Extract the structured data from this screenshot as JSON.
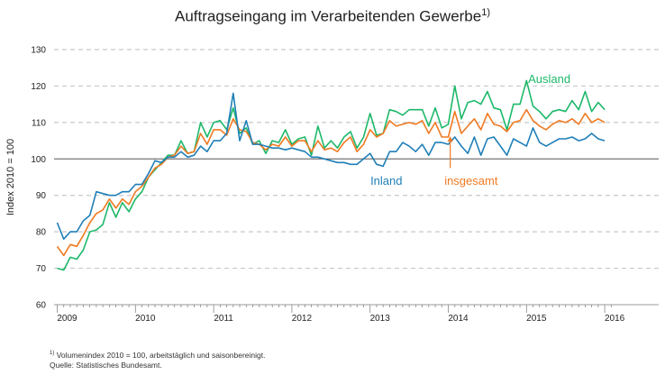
{
  "title": "Auftragseingang im Verarbeitenden Gewerbe",
  "title_footnote_mark": "1)",
  "footnote_mark": "1)",
  "footnote_text": " Volumenindex 2010 = 100, arbeitstäglich und saisonbereinigt.",
  "source": "Quelle: Statistisches Bundesamt.",
  "chart_data": {
    "type": "line",
    "title": "Auftragseingang im Verarbeitenden Gewerbe",
    "ylabel": "Index 2010 = 100",
    "xlabel": "",
    "ylim": [
      60,
      130
    ],
    "xlim": [
      "2009-01",
      "2016-06"
    ],
    "yticks": [
      60,
      70,
      80,
      90,
      100,
      110,
      120,
      130
    ],
    "xticks": [
      "2009",
      "2010",
      "2011",
      "2012",
      "2013",
      "2014",
      "2015",
      "2016"
    ],
    "grid": "horizontal dashed",
    "reference_line": 100,
    "x_start": "2009-01",
    "x_step": "month",
    "series": [
      {
        "name": "Ausland",
        "color": "#1db86a",
        "values": [
          70,
          69.5,
          73,
          72.5,
          75,
          80,
          80.5,
          82,
          88,
          84,
          88,
          85.5,
          89,
          91,
          95,
          97,
          99,
          101,
          101,
          105,
          101.5,
          102,
          110,
          106,
          110,
          110.5,
          108,
          114,
          107,
          108.5,
          104,
          105,
          101.5,
          105,
          104.5,
          108,
          104,
          105.5,
          106,
          101,
          109,
          103,
          105,
          103,
          106,
          107.5,
          103,
          106,
          112.5,
          106.5,
          107,
          113.5,
          113,
          112,
          113.5,
          113.5,
          113.5,
          109,
          114,
          108.5,
          109.5,
          120,
          111,
          115.5,
          116,
          115,
          118.5,
          114,
          113.5,
          108,
          115,
          115,
          121.5,
          114.5,
          113,
          111,
          113,
          113.5,
          113,
          116,
          113.5,
          118.5,
          113,
          115.5,
          113.5
        ]
      },
      {
        "name": "insgesamt",
        "color": "#f07a22",
        "values": [
          76,
          73.5,
          76.5,
          76,
          79,
          82.5,
          85,
          86,
          89,
          86.5,
          89,
          87.5,
          91,
          92.5,
          95,
          97.5,
          98.5,
          100.5,
          101,
          103.5,
          101.5,
          102,
          107,
          104,
          108,
          108,
          106.5,
          111,
          108,
          107.5,
          104.5,
          104,
          102.5,
          104,
          103.5,
          106,
          103.5,
          105,
          105,
          102,
          105,
          102.5,
          103,
          102,
          104.5,
          106,
          102,
          104,
          108,
          106,
          107,
          110.5,
          109,
          109.5,
          110,
          109.5,
          110.5,
          107,
          110,
          106,
          106,
          113,
          107,
          109,
          111,
          108,
          112.5,
          109.5,
          109,
          107.5,
          110,
          110.5,
          113.5,
          110.5,
          109,
          108,
          109.5,
          110.5,
          110,
          111,
          109.5,
          112.5,
          110,
          111,
          110
        ]
      },
      {
        "name": "Inland",
        "color": "#1f7fb8",
        "values": [
          82.5,
          78,
          80,
          80,
          83,
          84.5,
          91,
          90.5,
          90,
          90,
          91,
          91,
          93,
          93,
          96,
          99.5,
          99,
          100.5,
          100.5,
          102,
          100.5,
          101,
          103.5,
          102,
          105,
          105,
          107,
          118,
          105,
          110.5,
          104,
          104,
          103.5,
          103,
          103,
          102.5,
          103,
          102.5,
          102,
          100.5,
          100.5,
          100,
          99.5,
          99,
          99,
          98.5,
          98.5,
          100,
          101.5,
          98.5,
          98,
          102,
          102,
          104.5,
          103.5,
          102,
          104,
          101,
          104.5,
          104.5,
          104,
          106,
          103.5,
          101.5,
          106,
          101,
          105.5,
          106,
          103.5,
          101,
          105.5,
          104.5,
          103.5,
          108.5,
          104.5,
          103.5,
          104.5,
          105.5,
          105.5,
          106,
          105,
          105.5,
          107,
          105.5,
          105
        ]
      }
    ],
    "annotations": [
      {
        "text": "Ausland",
        "series": "Ausland"
      },
      {
        "text": "Inland",
        "series": "Inland"
      },
      {
        "text": "insgesamt",
        "series": "insgesamt"
      }
    ]
  }
}
